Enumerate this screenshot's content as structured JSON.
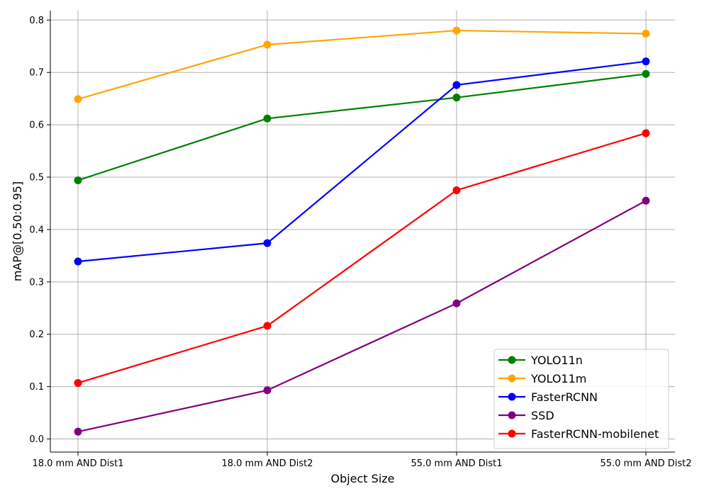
{
  "chart_data": {
    "type": "line",
    "title": "",
    "xlabel": "Object Size",
    "ylabel": "mAP@[0.50:0.95]",
    "categories": [
      "18.0 mm AND Dist1",
      "18.0 mm AND Dist2",
      "55.0 mm AND Dist1",
      "55.0 mm AND Dist2"
    ],
    "ylim": [
      -0.025,
      0.818
    ],
    "yticks": [
      0.0,
      0.1,
      0.2,
      0.3,
      0.4,
      0.5,
      0.6,
      0.7,
      0.8
    ],
    "ytick_labels": [
      "0.0",
      "0.1",
      "0.2",
      "0.3",
      "0.4",
      "0.5",
      "0.6",
      "0.7",
      "0.8"
    ],
    "grid": true,
    "legend_position": "lower-right",
    "series": [
      {
        "name": "YOLO11n",
        "color": "#008000",
        "values": [
          0.494,
          0.612,
          0.652,
          0.697
        ]
      },
      {
        "name": "YOLO11m",
        "color": "#FFA500",
        "values": [
          0.649,
          0.753,
          0.78,
          0.774
        ]
      },
      {
        "name": "FasterRCNN",
        "color": "#0000FF",
        "values": [
          0.339,
          0.374,
          0.676,
          0.721
        ]
      },
      {
        "name": "SSD",
        "color": "#800080",
        "values": [
          0.014,
          0.093,
          0.259,
          0.455
        ]
      },
      {
        "name": "FasterRCNN-mobilenet",
        "color": "#FF0000",
        "values": [
          0.107,
          0.216,
          0.475,
          0.584
        ]
      }
    ]
  }
}
